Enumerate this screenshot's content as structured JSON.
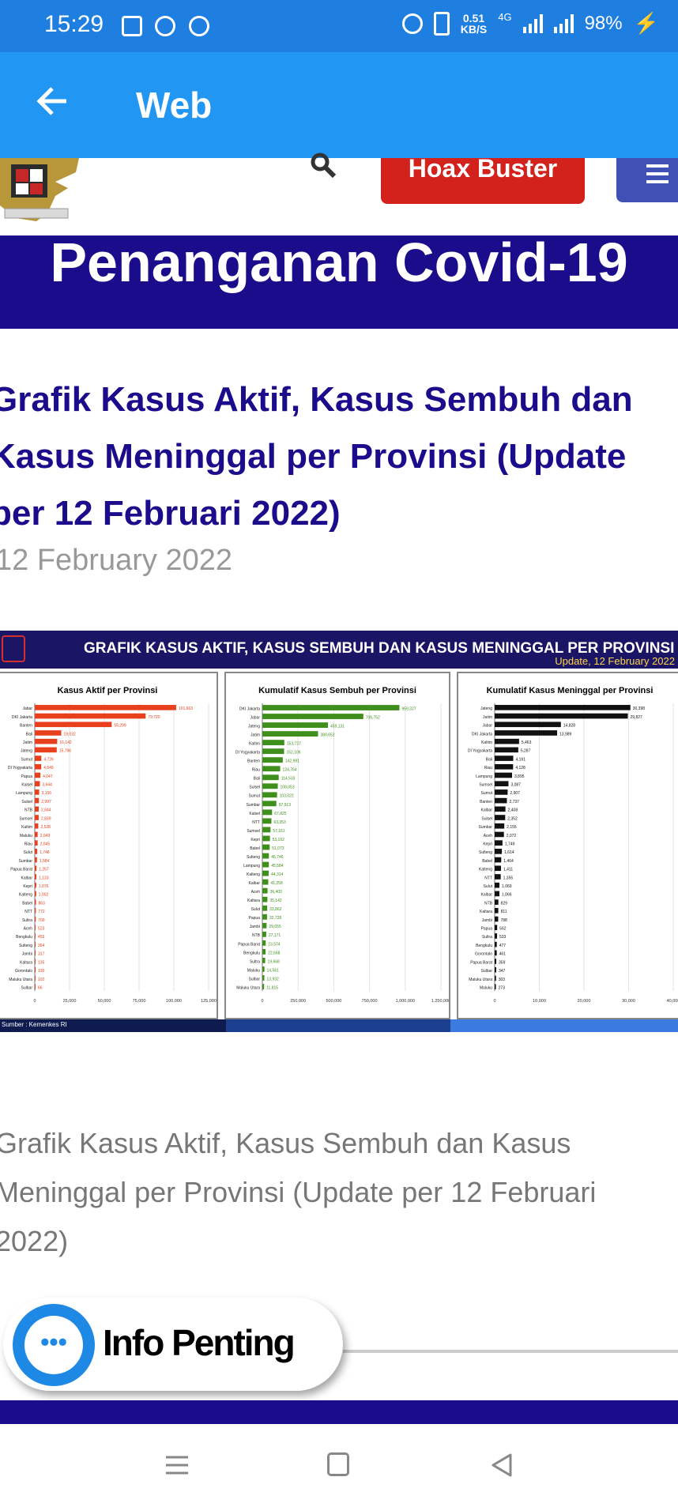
{
  "status_bar": {
    "time": "15:29",
    "speed": "0.51",
    "speed_unit": "KB/S",
    "network": "4G",
    "battery": "98%"
  },
  "app_bar": {
    "back_icon": "arrow-left-icon",
    "title": "Web"
  },
  "site_header": {
    "hoax_button": "Hoax Buster",
    "search_icon": "search-icon",
    "menu_icon": "hamburger-menu-icon",
    "banner": "Penanganan Covid-19"
  },
  "article": {
    "headline": "Grafik Kasus Aktif, Kasus Sembuh dan Kasus Meninggal per Provinsi (Update per 12 Februari 2022)",
    "date": "12 February 2022",
    "caption": "Grafik Kasus Aktif, Kasus Sembuh dan Kasus Meninggal per Provinsi (Update per 12 Februari 2022)"
  },
  "infographic": {
    "title": "GRAFIK KASUS AKTIF, KASUS SEMBUH DAN KASUS MENINGGAL PER PROVINSI",
    "update": "Update, 12 February 2022",
    "source": "Sumber : Kemenkes RI"
  },
  "chart_data": [
    {
      "type": "bar",
      "orientation": "horizontal",
      "title": "Kasus Aktif per Provinsi",
      "color": "#e8401c",
      "xlim": [
        0,
        125000
      ],
      "xticks": [
        "0",
        "25,000",
        "50,000",
        "75,000",
        "100,000",
        "125,000"
      ],
      "categories": [
        "Jabar",
        "DKI Jakarta",
        "Banten",
        "Bali",
        "Jatim",
        "Jateng",
        "Sumut",
        "DI Yogyakarta",
        "Papua",
        "Kalsel",
        "Lampung",
        "Sulsel",
        "NTB",
        "Sumsel",
        "Kaltim",
        "Maluku",
        "Riau",
        "Sulut",
        "Sumbar",
        "Papua Barat",
        "Kalbar",
        "Kepri",
        "Kalteng",
        "Babel",
        "NTT",
        "Sultra",
        "Aceh",
        "Bengkulu",
        "Sulteng",
        "Jambi",
        "Kaltara",
        "Gorontalo",
        "Maluku Utara",
        "Sulbar"
      ],
      "values": [
        101663,
        79720,
        55299,
        19032,
        16142,
        15796,
        4726,
        4649,
        4047,
        3644,
        3156,
        2997,
        2844,
        2839,
        2528,
        2049,
        2045,
        1748,
        1584,
        1257,
        1133,
        1076,
        1002,
        863,
        772,
        709,
        523,
        455,
        364,
        317,
        135,
        130,
        102,
        66
      ],
      "labels": [
        "101,663",
        "79,720",
        "55,299",
        "19,032",
        "16,142",
        "15,796",
        "4,726",
        "4,649",
        "4,047",
        "3,644",
        "3,156",
        "2,997",
        "2,844",
        "2,839",
        "2,528",
        "2,049",
        "2,045",
        "1,748",
        "1,584",
        "1,257",
        "1,133",
        "1,076",
        "1,002",
        "863",
        "772",
        "709",
        "523",
        "455",
        "364",
        "317",
        "135",
        "130",
        "102",
        "66"
      ]
    },
    {
      "type": "bar",
      "orientation": "horizontal",
      "title": "Kumulatif Kasus Sembuh per Provinsi",
      "color": "#3f8f1c",
      "xlim": [
        0,
        1250000
      ],
      "xticks": [
        "0",
        "250,000",
        "500,000",
        "750,000",
        "1,000,000",
        "1,250,000"
      ],
      "categories": [
        "DKI Jakarta",
        "Jabar",
        "Jateng",
        "Jatim",
        "Kaltim",
        "DI Yogyakarta",
        "Banten",
        "Riau",
        "Bali",
        "Sulsel",
        "Sumut",
        "Sumbar",
        "Kalsel",
        "NTT",
        "Sumsel",
        "Kepri",
        "Babel",
        "Sulteng",
        "Lampung",
        "Kalteng",
        "Kalbar",
        "Aceh",
        "Kaltara",
        "Sulut",
        "Papua",
        "Jambi",
        "NTB",
        "Papua Barat",
        "Bengkulu",
        "Sultra",
        "Maluku",
        "Sulbar",
        "Maluku Utara"
      ],
      "values": [
        959327,
        706752,
        459131,
        389652,
        153727,
        152106,
        142991,
        124764,
        114533,
        108053,
        103022,
        97913,
        67825,
        63353,
        57161,
        53162,
        51073,
        45746,
        45584,
        44314,
        41258,
        36400,
        35142,
        33862,
        32728,
        29655,
        27171,
        23574,
        22668,
        19668,
        14561,
        13932,
        11815
      ],
      "labels": [
        "959,327",
        "706,752",
        "459,131",
        "389,652",
        "153,727",
        "152,106",
        "142,991",
        "124,764",
        "114,533",
        "108,053",
        "103,022",
        "97,913",
        "67,825",
        "63,353",
        "57,161",
        "53,162",
        "51,073",
        "45,746",
        "45,584",
        "44,314",
        "41,258",
        "36,400",
        "35,142",
        "33,862",
        "32,728",
        "29,655",
        "27,171",
        "23,574",
        "22,668",
        "19,668",
        "14,561",
        "13,932",
        "11,815"
      ]
    },
    {
      "type": "bar",
      "orientation": "horizontal",
      "title": "Kumulatif Kasus Meninggal per Provinsi",
      "color": "#111111",
      "xlim": [
        0,
        40000
      ],
      "xticks": [
        "0",
        "10,000",
        "20,000",
        "30,000",
        "40,000"
      ],
      "categories": [
        "Jateng",
        "Jatim",
        "Jabar",
        "DKI Jakarta",
        "Kaltim",
        "DI Yogyakarta",
        "Bali",
        "Riau",
        "Lampung",
        "Sumsel",
        "Sumut",
        "Banten",
        "Kalbar",
        "Sulsel",
        "Sumbar",
        "Aceh",
        "Kepri",
        "Sulteng",
        "Babel",
        "Kalteng",
        "NTT",
        "Sulut",
        "Kalbar",
        "NTB",
        "Kaltara",
        "Jambi",
        "Papua",
        "Sultra",
        "Bengkulu",
        "Gorontalo",
        "Papua Barat",
        "Sulbar",
        "Maluku Utara",
        "Maluku"
      ],
      "values": [
        30398,
        29827,
        14828,
        13989,
        5463,
        5287,
        4161,
        4128,
        3895,
        3087,
        2907,
        2737,
        2408,
        2352,
        2155,
        2072,
        1749,
        1614,
        1464,
        1411,
        1355,
        1069,
        1066,
        829,
        811,
        788,
        562,
        533,
        477,
        461,
        359,
        347,
        303,
        273
      ],
      "labels": [
        "30,398",
        "29,827",
        "14,828",
        "13,989",
        "5,463",
        "5,287",
        "4,161",
        "4,128",
        "3,895",
        "3,087",
        "2,907",
        "2,737",
        "2,408",
        "2,352",
        "2,155",
        "2,072",
        "1,749",
        "1,614",
        "1,464",
        "1,411",
        "1,355",
        "1,069",
        "1,066",
        "829",
        "811",
        "788",
        "562",
        "533",
        "477",
        "461",
        "359",
        "347",
        "303",
        "273"
      ]
    }
  ],
  "info_penting": {
    "label": "Info Penting",
    "icon": "more-dots-icon"
  },
  "nav_bar": {
    "recents_icon": "recents-icon",
    "home_icon": "home-icon",
    "back_icon": "back-triangle-icon"
  },
  "colors": {
    "app_bar": "#2196f3",
    "status_bar": "#1e7fe0",
    "banner": "#1b0c8c",
    "hoax_button": "#d3211c",
    "headline": "#1b0c8c"
  }
}
